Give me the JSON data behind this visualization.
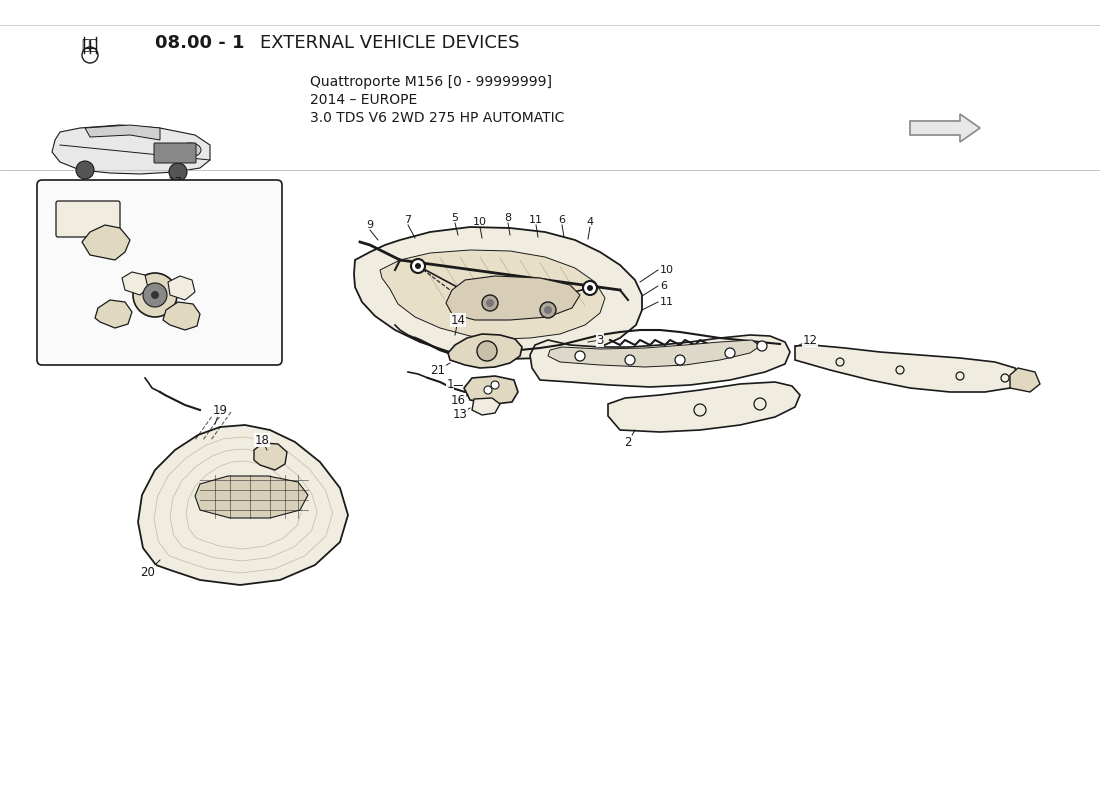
{
  "title_number": "08.00 - 1",
  "title_bold": "08.00 - 1",
  "title_text": "EXTERNAL VEHICLE DEVICES",
  "subtitle_line1": "Quattroporte M156 [0 - 99999999]",
  "subtitle_line2": "2014 – EUROPE",
  "subtitle_line3": "3.0 TDS V6 2WD 275 HP AUTOMATIC",
  "bg_color": "#ffffff",
  "line_color": "#1a1a1a",
  "fill_light": "#f0ece0",
  "fill_medium": "#e0d8c0",
  "fill_dark": "#c8bfa8"
}
